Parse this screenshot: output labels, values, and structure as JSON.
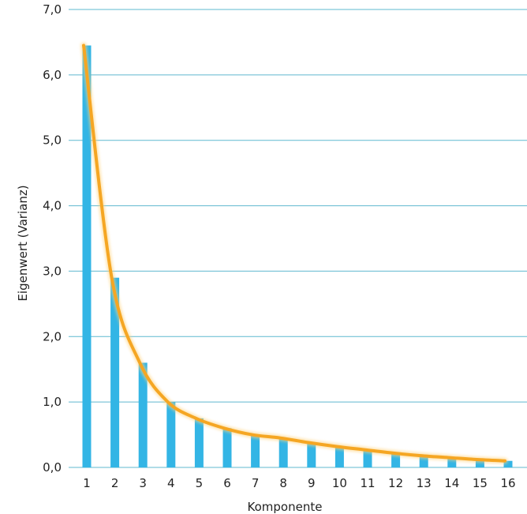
{
  "chart_data": {
    "type": "bar",
    "title": "",
    "xlabel": "Komponente",
    "ylabel": "Eigenwert (Varianz)",
    "categories": [
      "1",
      "2",
      "3",
      "4",
      "5",
      "6",
      "7",
      "8",
      "9",
      "10",
      "11",
      "12",
      "13",
      "14",
      "15",
      "16"
    ],
    "series": [
      {
        "type": "bar",
        "values": [
          6.45,
          2.9,
          1.6,
          1.0,
          0.75,
          0.6,
          0.5,
          0.45,
          0.38,
          0.32,
          0.27,
          0.22,
          0.18,
          0.15,
          0.12,
          0.1
        ]
      },
      {
        "type": "line",
        "smooth": true,
        "values": [
          6.45,
          2.9,
          1.6,
          1.0,
          0.75,
          0.6,
          0.5,
          0.45,
          0.38,
          0.32,
          0.27,
          0.22,
          0.18,
          0.15,
          0.12,
          0.1
        ]
      }
    ],
    "ylim": [
      0,
      7
    ],
    "yticks": [
      "0,0",
      "1,0",
      "2,0",
      "3,0",
      "4,0",
      "5,0",
      "6,0",
      "7,0"
    ],
    "grid": true,
    "colors": {
      "bar": "#33b5e5",
      "line": "#f5a623",
      "grid": "#5fb8cf"
    }
  }
}
